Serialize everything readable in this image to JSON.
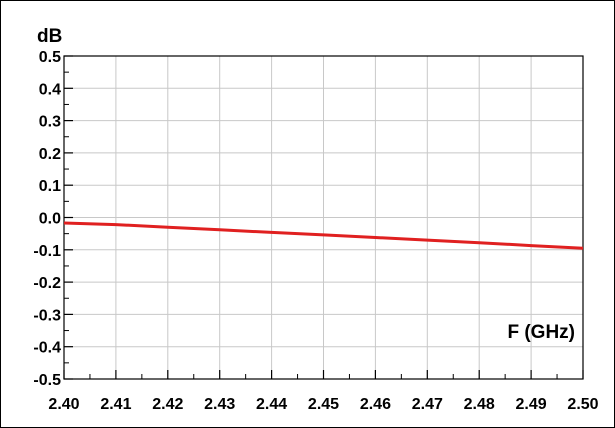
{
  "chart_data": {
    "type": "line",
    "title": "",
    "xlabel": "F (GHz)",
    "ylabel": "dB",
    "xlim": [
      2.4,
      2.5
    ],
    "ylim": [
      -0.5,
      0.5
    ],
    "x_ticks": [
      "2.40",
      "2.41",
      "2.42",
      "2.43",
      "2.44",
      "2.45",
      "2.46",
      "2.47",
      "2.48",
      "2.49",
      "2.50"
    ],
    "y_ticks": [
      "0.5",
      "0.4",
      "0.3",
      "0.2",
      "0.1",
      "0.0",
      "-0.1",
      "-0.2",
      "-0.3",
      "-0.4",
      "-0.5"
    ],
    "grid": true,
    "series": [
      {
        "color": "#e02020",
        "x": [
          2.4,
          2.41,
          2.42,
          2.43,
          2.44,
          2.45,
          2.46,
          2.47,
          2.48,
          2.49,
          2.5
        ],
        "y": [
          -0.017,
          -0.022,
          -0.03,
          -0.038,
          -0.046,
          -0.054,
          -0.062,
          -0.07,
          -0.078,
          -0.087,
          -0.095
        ]
      }
    ]
  }
}
